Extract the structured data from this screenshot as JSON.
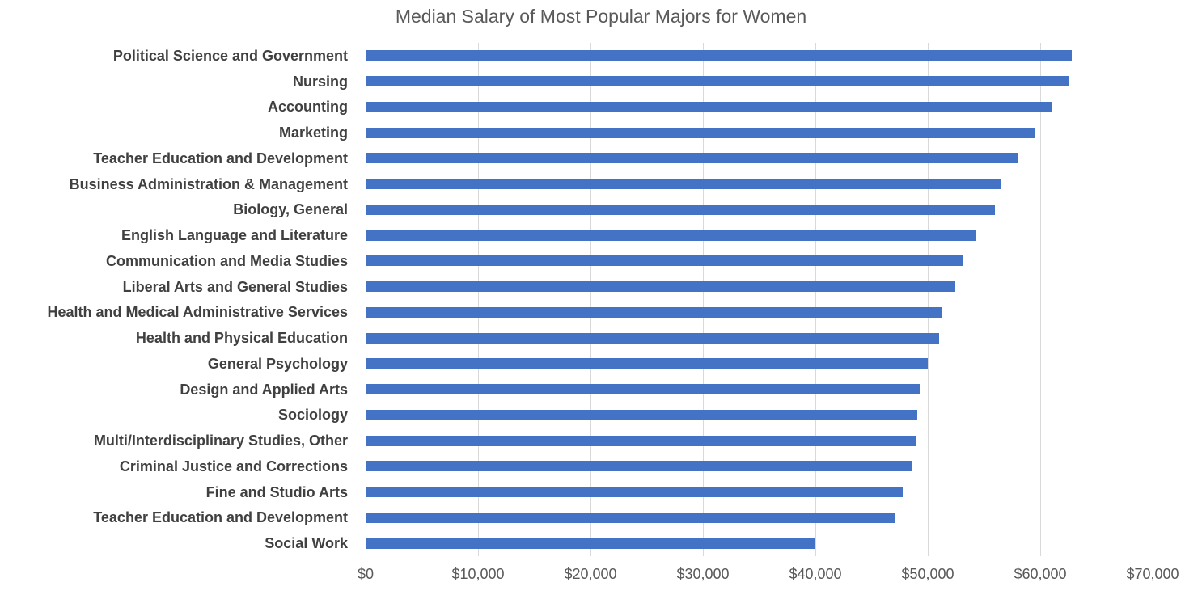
{
  "chart_data": {
    "type": "bar",
    "orientation": "horizontal",
    "title": "Median Salary of Most Popular Majors for Women",
    "categories": [
      "Political Science and Government",
      "Nursing",
      "Accounting",
      "Marketing",
      "Teacher Education and Development",
      "Business Administration & Management",
      "Biology, General",
      "English Language and Literature",
      "Communication and Media Studies",
      "Liberal Arts and General Studies",
      "Health and Medical Administrative Services",
      "Health and Physical Education",
      "General Psychology",
      "Design and Applied Arts",
      "Sociology",
      "Multi/Interdisciplinary Studies, Other",
      "Criminal Justice and Corrections",
      "Fine and Studio Arts",
      "Teacher Education and Development",
      "Social Work"
    ],
    "values": [
      62700,
      62500,
      60900,
      59400,
      58000,
      56500,
      55900,
      54200,
      53000,
      52400,
      51200,
      50900,
      49900,
      49200,
      49000,
      48900,
      48500,
      47700,
      47000,
      39900
    ],
    "xlabel": "",
    "ylabel": "",
    "xlim": [
      0,
      70000
    ],
    "x_ticks": [
      0,
      10000,
      20000,
      30000,
      40000,
      50000,
      60000,
      70000
    ],
    "x_tick_labels": [
      "$0",
      "$10,000",
      "$20,000",
      "$30,000",
      "$40,000",
      "$50,000",
      "$60,000",
      "$70,000"
    ],
    "grid": "vertical-only",
    "legend_position": "none",
    "colors": {
      "bar": "#4472C4",
      "gridline": "#D9D9D9",
      "title": "#595959",
      "category_label": "#404040",
      "tick_label": "#595959",
      "background": "#FFFFFF"
    }
  }
}
